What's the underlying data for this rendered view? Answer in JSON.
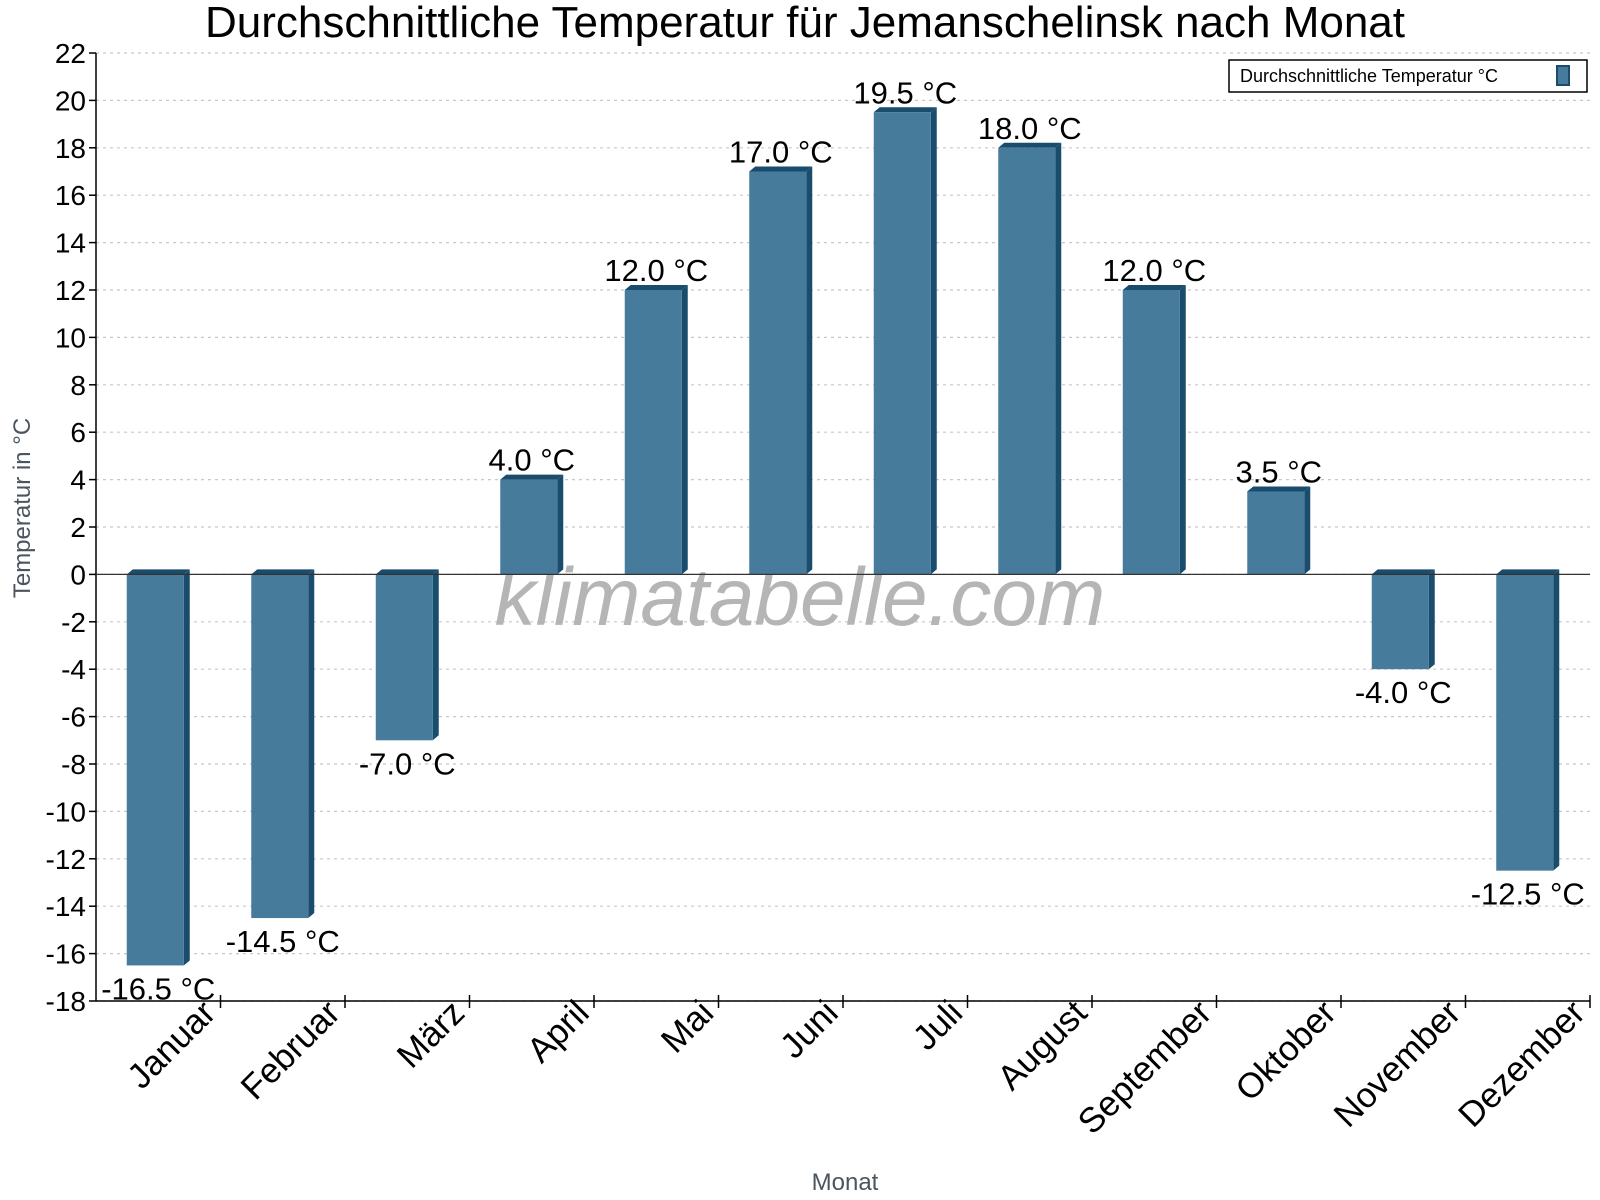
{
  "chart_data": {
    "type": "bar",
    "title": "Durchschnittliche Temperatur für Jemanschelinsk nach Monat",
    "xlabel": "Monat",
    "ylabel": "Temperatur in °C",
    "ylim": [
      -18,
      22
    ],
    "ytick_step": 2,
    "grid": true,
    "legend_position": "top-right",
    "categories": [
      "Januar",
      "Februar",
      "März",
      "April",
      "Mai",
      "Juni",
      "Juli",
      "August",
      "September",
      "Oktober",
      "November",
      "Dezember"
    ],
    "series": [
      {
        "name": "Durchschnittliche Temperatur °C",
        "values": [
          -16.5,
          -14.5,
          -7.0,
          4.0,
          12.0,
          17.0,
          19.5,
          18.0,
          12.0,
          3.5,
          -4.0,
          -12.5
        ],
        "labels": [
          "-16.5 °C",
          "-14.5 °C",
          "-7.0 °C",
          "4.0 °C",
          "12.0 °C",
          "17.0 °C",
          "19.5 °C",
          "18.0 °C",
          "12.0 °C",
          "3.5 °C",
          "-4.0 °C",
          "-12.5 °C"
        ]
      }
    ],
    "watermark": "klimatabelle.com",
    "colors": {
      "bar_front": "#477b9c",
      "bar_side": "#1a4c6e",
      "grid": "#c8c8c8",
      "axis": "#000000"
    }
  }
}
